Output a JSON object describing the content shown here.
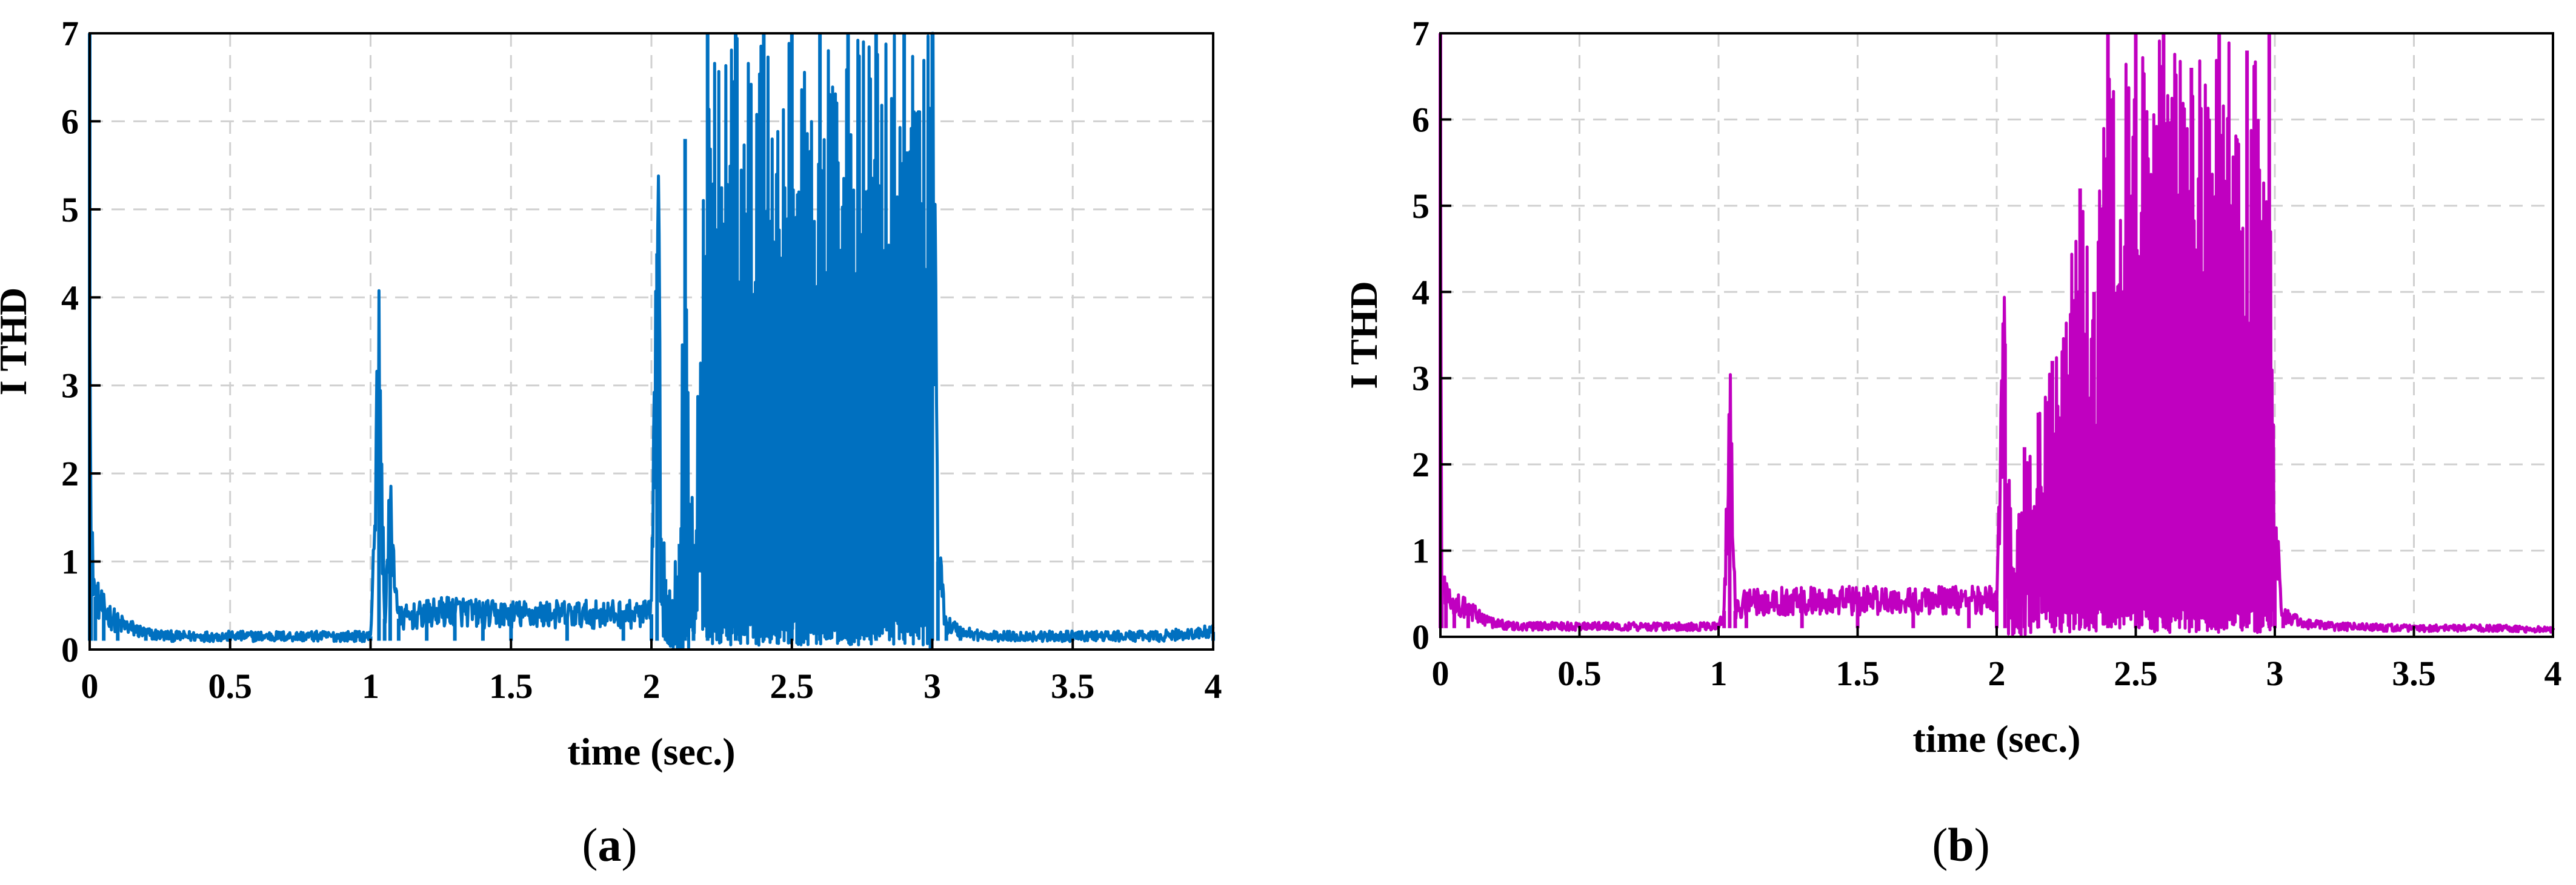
{
  "chart_data": [
    {
      "type": "line",
      "panel_caption": "a",
      "xlabel": "time (sec.)",
      "ylabel": "I THD",
      "xlim": [
        0,
        4
      ],
      "ylim": [
        0,
        7
      ],
      "xticks": [
        0,
        0.5,
        1,
        1.5,
        2,
        2.5,
        3,
        3.5,
        4
      ],
      "xtick_labels": [
        "0",
        "0.5",
        "1",
        "1.5",
        "2",
        "2.5",
        "3",
        "3.5",
        "4"
      ],
      "yticks": [
        0,
        1,
        2,
        3,
        4,
        5,
        6,
        7
      ],
      "ytick_labels": [
        "0",
        "1",
        "2",
        "3",
        "4",
        "5",
        "6",
        "7"
      ],
      "grid": true,
      "color": "#0070c0",
      "series": [
        {
          "x": [
            0,
            0.005,
            0.02,
            0.05,
            0.1,
            0.2,
            0.3,
            0.5,
            0.7,
            0.9,
            1.0,
            1.03,
            1.05,
            1.07,
            1.1,
            1.2,
            1.3,
            1.4,
            1.5,
            1.7,
            1.9,
            2.0,
            2.02,
            2.05,
            2.1,
            2.12,
            2.15,
            2.2,
            2.3,
            2.4,
            2.5,
            2.6,
            2.7,
            2.8,
            2.9,
            3.0,
            3.02,
            3.05,
            3.1,
            3.2,
            3.5,
            3.8,
            4.0
          ],
          "y": [
            7,
            1.2,
            0.6,
            0.45,
            0.3,
            0.18,
            0.15,
            0.15,
            0.15,
            0.15,
            0.15,
            3.05,
            0.35,
            1.5,
            0.35,
            0.4,
            0.45,
            0.4,
            0.4,
            0.4,
            0.4,
            0.4,
            4.5,
            0.8,
            1.2,
            5.8,
            1.2,
            7,
            7,
            7,
            7,
            7,
            7,
            7,
            7,
            7,
            1.0,
            0.3,
            0.2,
            0.15,
            0.15,
            0.15,
            0.2
          ]
        }
      ]
    },
    {
      "type": "line",
      "panel_caption": "b",
      "xlabel": "time (sec.)",
      "ylabel": "I THD",
      "xlim": [
        0,
        4
      ],
      "ylim": [
        0,
        7
      ],
      "xticks": [
        0,
        0.5,
        1,
        1.5,
        2,
        2.5,
        3,
        3.5,
        4
      ],
      "xtick_labels": [
        "0",
        "0.5",
        "1",
        "1.5",
        "2",
        "2.5",
        "3",
        "3.5",
        "4"
      ],
      "yticks": [
        0,
        1,
        2,
        3,
        4,
        5,
        6,
        7
      ],
      "ytick_labels": [
        "0",
        "1",
        "2",
        "3",
        "4",
        "5",
        "6",
        "7"
      ],
      "grid": true,
      "color": "#c000c0",
      "series": [
        {
          "x": [
            0,
            0.005,
            0.02,
            0.05,
            0.1,
            0.2,
            0.3,
            0.5,
            0.7,
            0.9,
            1.0,
            1.02,
            1.04,
            1.06,
            1.1,
            1.3,
            1.5,
            1.7,
            1.9,
            2.0,
            2.03,
            2.06,
            2.1,
            2.15,
            2.2,
            2.3,
            2.35,
            2.4,
            2.5,
            2.6,
            2.7,
            2.8,
            2.9,
            2.98,
            3.0,
            3.03,
            3.1,
            3.2,
            3.5,
            3.8,
            4.0
          ],
          "y": [
            7,
            0.6,
            0.5,
            0.4,
            0.3,
            0.15,
            0.12,
            0.12,
            0.12,
            0.12,
            0.12,
            0.3,
            2.45,
            0.3,
            0.4,
            0.42,
            0.42,
            0.42,
            0.42,
            0.42,
            3.4,
            0.8,
            2.2,
            2.6,
            3.2,
            5.2,
            4.0,
            7,
            7,
            7,
            6.6,
            7,
            6.8,
            7,
            1.2,
            0.25,
            0.15,
            0.12,
            0.1,
            0.1,
            0.08
          ]
        }
      ]
    }
  ],
  "captions": [
    {
      "open": "(",
      "letter": "a",
      "close": ")"
    },
    {
      "open": "(",
      "letter": "b",
      "close": ")"
    }
  ]
}
